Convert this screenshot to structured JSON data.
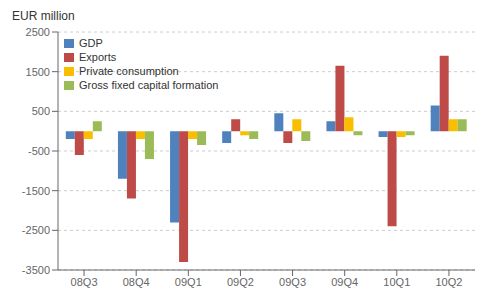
{
  "chart_data": {
    "type": "bar",
    "ylabel": "EUR million",
    "categories": [
      "08Q3",
      "08Q4",
      "09Q1",
      "09Q2",
      "09Q3",
      "09Q4",
      "10Q1",
      "10Q2"
    ],
    "series": [
      {
        "name": "GDP",
        "color": "#4F81BD",
        "values": [
          -200,
          -1200,
          -2300,
          -300,
          450,
          250,
          -150,
          650
        ]
      },
      {
        "name": "Exports",
        "color": "#BE4B48",
        "values": [
          -600,
          -1700,
          -3300,
          300,
          -300,
          1650,
          -2400,
          1900
        ]
      },
      {
        "name": "Private consumption",
        "color": "#F9BE00",
        "values": [
          -200,
          -200,
          -200,
          -100,
          300,
          350,
          -150,
          300
        ]
      },
      {
        "name": "Gross fixed capital formation",
        "color": "#9BBB59",
        "values": [
          250,
          -700,
          -350,
          -200,
          -250,
          -100,
          -100,
          300
        ]
      }
    ],
    "ylim": [
      -3500,
      2500
    ],
    "yticks": [
      -3500,
      -2500,
      -1500,
      -500,
      500,
      1500,
      2500
    ],
    "grid": true,
    "legend": "top-left"
  }
}
